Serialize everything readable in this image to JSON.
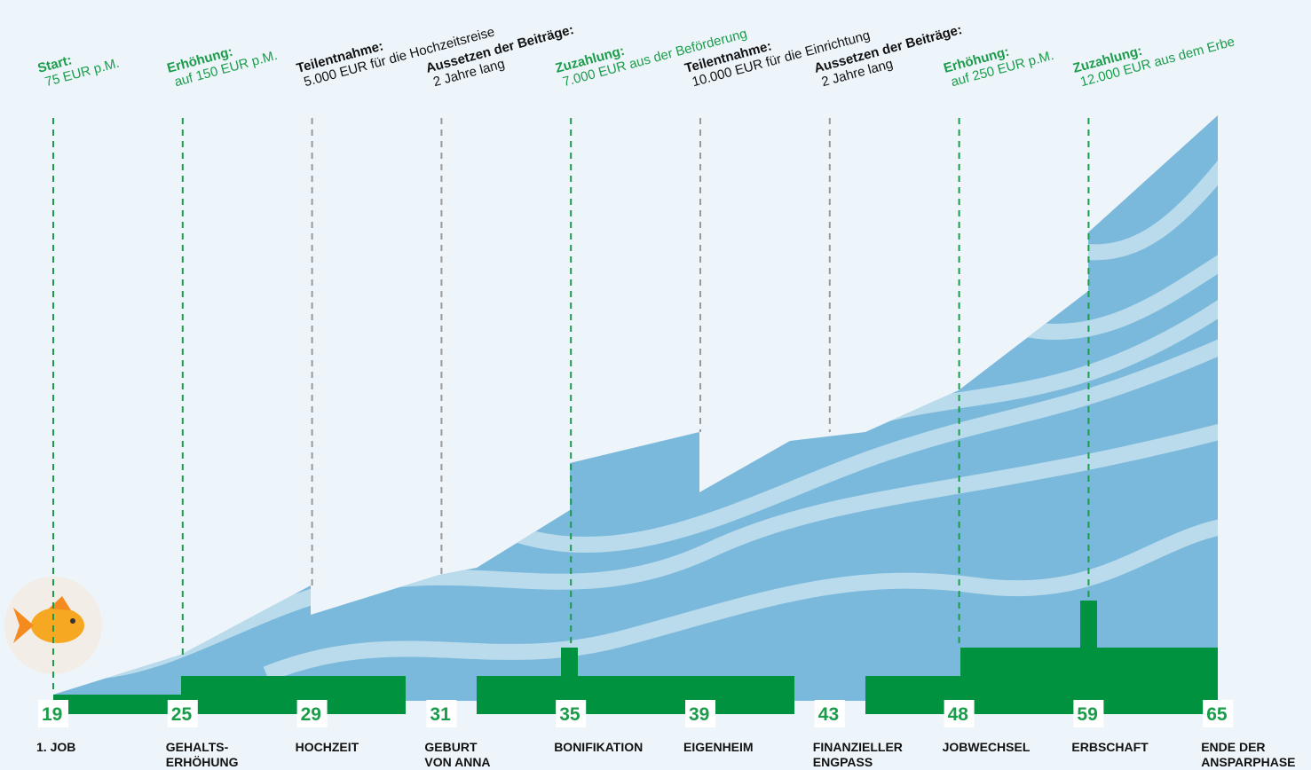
{
  "events": [
    {
      "age": 19,
      "label": [
        "1. JOB"
      ],
      "heading": "Start:",
      "text": "75 EUR p.M.",
      "color": "#1a9c4a"
    },
    {
      "age": 25,
      "label": [
        "GEHALTS-",
        "ERHÖHUNG"
      ],
      "heading": "Erhöhung:",
      "text": "auf 150 EUR p.M.",
      "color": "#1a9c4a"
    },
    {
      "age": 29,
      "label": [
        "HOCHZEIT"
      ],
      "heading": "Teilentnahme:",
      "text": "5.000 EUR für die Hochzeitsreise",
      "color": "#111111"
    },
    {
      "age": 31,
      "label": [
        "GEBURT",
        "VON ANNA"
      ],
      "heading": "Aussetzen der Beiträge:",
      "text": "2 Jahre lang",
      "color": "#111111"
    },
    {
      "age": 35,
      "label": [
        "BONIFIKATION"
      ],
      "heading": "Zuzahlung:",
      "text": "7.000 EUR aus der Beförderung",
      "color": "#1a9c4a"
    },
    {
      "age": 39,
      "label": [
        "EIGENHEIM"
      ],
      "heading": "Teilentnahme:",
      "text": "10.000 EUR für die Einrichtung",
      "color": "#111111"
    },
    {
      "age": 43,
      "label": [
        "FINANZIELLER",
        "ENGPASS"
      ],
      "heading": "Aussetzen der Beiträge:",
      "text": "2 Jahre lang",
      "color": "#111111"
    },
    {
      "age": 48,
      "label": [
        "JOBWECHSEL"
      ],
      "heading": "Erhöhung:",
      "text": "auf 250 EUR p.M.",
      "color": "#1a9c4a"
    },
    {
      "age": 59,
      "label": [
        "ERBSCHAFT"
      ],
      "heading": "Zuzahlung:",
      "text": "12.000 EUR aus dem Erbe",
      "color": "#1a9c4a"
    },
    {
      "age": 65,
      "label": [
        "ENDE DER",
        "ANSPARPHASE"
      ]
    }
  ]
}
